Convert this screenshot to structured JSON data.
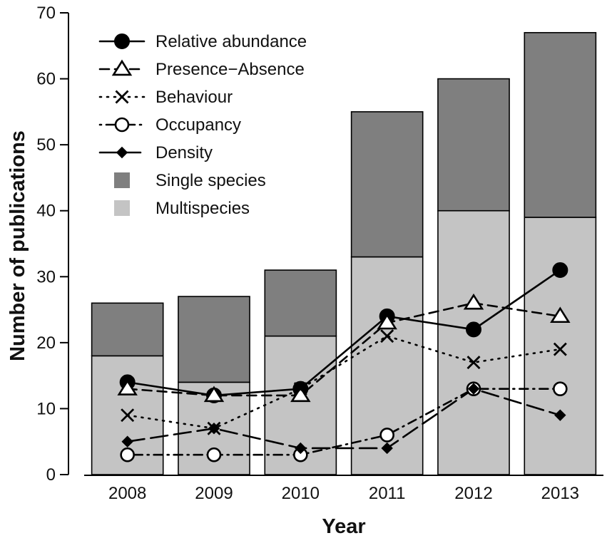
{
  "chart_data": {
    "type": "bar",
    "categories": [
      "2008",
      "2009",
      "2010",
      "2011",
      "2012",
      "2013"
    ],
    "stacked_bars": [
      {
        "name": "Multispecies",
        "color": "#c4c4c4",
        "values": [
          18,
          14,
          21,
          33,
          40,
          39
        ]
      },
      {
        "name": "Single species",
        "color": "#7f7f7f",
        "values": [
          8,
          13,
          10,
          22,
          20,
          28
        ]
      }
    ],
    "line_series": [
      {
        "name": "Relative abundance",
        "marker": "filled-circle",
        "dash": "solid",
        "values": [
          14,
          12,
          13,
          24,
          22,
          31
        ]
      },
      {
        "name": "Presence−Absence",
        "marker": "open-triangle",
        "dash": "dashed",
        "values": [
          13,
          12,
          12,
          23,
          26,
          24
        ]
      },
      {
        "name": "Behaviour",
        "marker": "cross",
        "dash": "dotted",
        "values": [
          9,
          7,
          13,
          21,
          17,
          19
        ]
      },
      {
        "name": "Occupancy",
        "marker": "open-circle",
        "dash": "dotdash",
        "values": [
          3,
          3,
          3,
          6,
          13,
          13
        ]
      },
      {
        "name": "Density",
        "marker": "filled-diamond",
        "dash": "longdash",
        "values": [
          5,
          7,
          4,
          4,
          13,
          9
        ]
      }
    ],
    "xlabel": "Year",
    "ylabel": "Number of publications",
    "ylim": [
      0,
      70
    ],
    "yticks": [
      "0",
      "10",
      "20",
      "30",
      "40",
      "50",
      "60",
      "70"
    ],
    "legend_position": "top-left",
    "grid": false
  }
}
